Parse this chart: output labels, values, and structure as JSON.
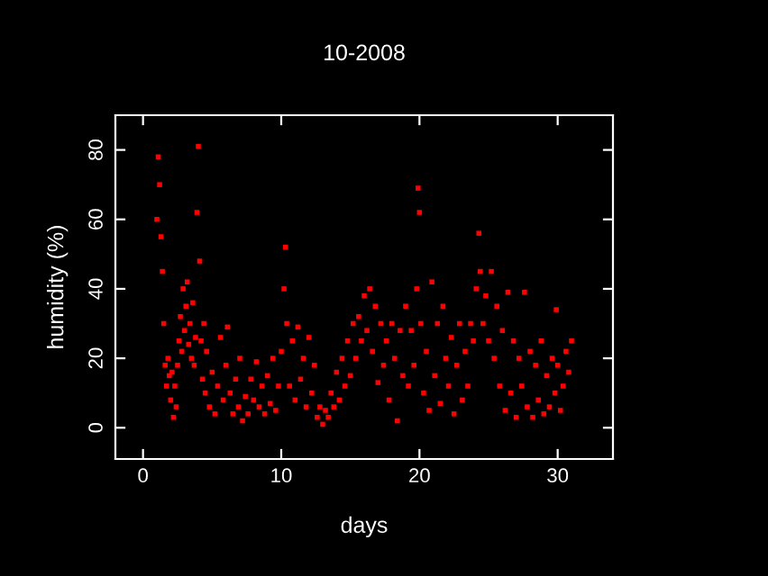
{
  "chart_data": {
    "type": "scatter",
    "title": "10-2008",
    "xlabel": "days",
    "ylabel": "humidity (%)",
    "xlim": [
      -2,
      34
    ],
    "ylim": [
      -9,
      90
    ],
    "xticks": [
      0,
      10,
      20,
      30
    ],
    "yticks": [
      0,
      20,
      40,
      60,
      80
    ],
    "grid": false,
    "marker": "square",
    "series": [
      {
        "color": "#ff0000",
        "x": [
          1.0,
          1.1,
          1.2,
          1.3,
          1.4,
          1.5,
          1.6,
          1.7,
          1.8,
          1.9,
          2.0,
          2.1,
          2.2,
          2.3,
          2.4,
          2.5,
          2.6,
          2.7,
          2.8,
          2.9,
          3.0,
          3.1,
          3.2,
          3.3,
          3.4,
          3.5,
          3.6,
          3.7,
          3.8,
          3.9,
          4.0,
          4.1,
          4.2,
          4.3,
          4.4,
          4.5,
          4.6,
          4.8,
          5.0,
          5.2,
          5.4,
          5.6,
          5.8,
          6.0,
          6.1,
          6.3,
          6.5,
          6.7,
          6.9,
          7.0,
          7.2,
          7.4,
          7.6,
          7.8,
          8.0,
          8.2,
          8.4,
          8.6,
          8.8,
          9.0,
          9.2,
          9.4,
          9.6,
          9.8,
          10.0,
          10.2,
          10.3,
          10.4,
          10.6,
          10.8,
          11.0,
          11.2,
          11.4,
          11.6,
          11.8,
          12.0,
          12.2,
          12.4,
          12.6,
          12.8,
          13.0,
          13.2,
          13.4,
          13.6,
          13.8,
          14.0,
          14.2,
          14.4,
          14.6,
          14.8,
          15.0,
          15.2,
          15.4,
          15.6,
          15.8,
          16.0,
          16.2,
          16.4,
          16.6,
          16.8,
          17.0,
          17.2,
          17.4,
          17.6,
          17.8,
          18.0,
          18.2,
          18.4,
          18.6,
          18.8,
          19.0,
          19.2,
          19.4,
          19.6,
          19.8,
          19.9,
          20.0,
          20.1,
          20.3,
          20.5,
          20.7,
          20.9,
          21.1,
          21.3,
          21.5,
          21.7,
          21.9,
          22.1,
          22.3,
          22.5,
          22.7,
          22.9,
          23.1,
          23.3,
          23.5,
          23.7,
          23.9,
          24.1,
          24.3,
          24.4,
          24.6,
          24.8,
          25.0,
          25.2,
          25.4,
          25.6,
          25.8,
          26.0,
          26.2,
          26.4,
          26.6,
          26.8,
          27.0,
          27.2,
          27.4,
          27.6,
          27.8,
          28.0,
          28.2,
          28.4,
          28.6,
          28.8,
          29.0,
          29.2,
          29.4,
          29.6,
          29.8,
          29.9,
          30.0,
          30.2,
          30.4,
          30.6,
          30.8,
          31.0
        ],
        "values": [
          60,
          78,
          70,
          55,
          45,
          30,
          18,
          12,
          20,
          15,
          8,
          16,
          3,
          12,
          6,
          18,
          25,
          32,
          22,
          40,
          28,
          35,
          42,
          24,
          30,
          20,
          36,
          18,
          26,
          62,
          81,
          48,
          25,
          14,
          30,
          10,
          22,
          6,
          16,
          4,
          12,
          26,
          8,
          18,
          29,
          10,
          4,
          14,
          6,
          20,
          2,
          9,
          4,
          14,
          8,
          19,
          6,
          12,
          4,
          15,
          7,
          20,
          5,
          12,
          22,
          40,
          52,
          30,
          12,
          25,
          8,
          29,
          14,
          20,
          6,
          26,
          10,
          18,
          3,
          6,
          1,
          5,
          3,
          10,
          6,
          16,
          8,
          20,
          12,
          25,
          15,
          30,
          20,
          32,
          25,
          38,
          28,
          40,
          22,
          35,
          13,
          30,
          18,
          25,
          8,
          30,
          20,
          2,
          28,
          15,
          35,
          12,
          28,
          18,
          40,
          69,
          62,
          30,
          10,
          22,
          5,
          42,
          15,
          30,
          7,
          35,
          20,
          12,
          26,
          4,
          18,
          30,
          8,
          22,
          12,
          30,
          25,
          40,
          56,
          45,
          30,
          38,
          25,
          45,
          20,
          35,
          12,
          28,
          5,
          39,
          10,
          25,
          3,
          20,
          12,
          39,
          6,
          22,
          3,
          18,
          8,
          25,
          4,
          15,
          6,
          20,
          10,
          34,
          18,
          5,
          12,
          22,
          16,
          25
        ]
      }
    ]
  }
}
